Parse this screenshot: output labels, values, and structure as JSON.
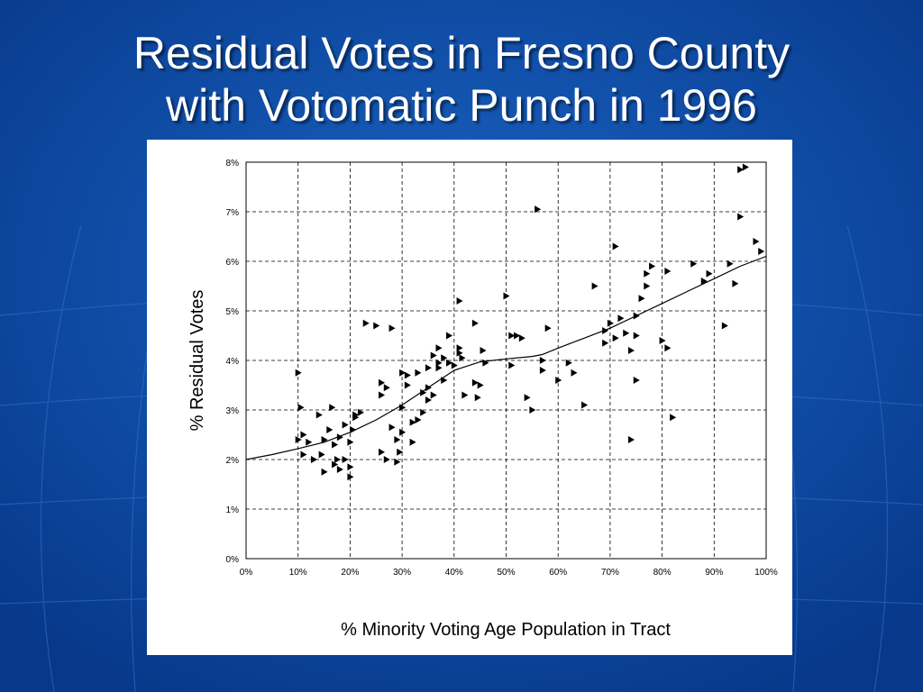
{
  "slide": {
    "title_line1": "Residual Votes in Fresno County",
    "title_line2": "with Votomatic Punch in 1996",
    "background_color": "#0a4fa8"
  },
  "chart_data": {
    "type": "scatter",
    "xlabel": "% Minority Voting Age Population in Tract",
    "ylabel": "% Residual Votes",
    "xlim": [
      0,
      100
    ],
    "ylim": [
      0,
      8
    ],
    "x_ticks": [
      "0%",
      "10%",
      "20%",
      "30%",
      "40%",
      "50%",
      "60%",
      "70%",
      "80%",
      "90%",
      "100%"
    ],
    "y_ticks": [
      "0%",
      "1%",
      "2%",
      "3%",
      "4%",
      "5%",
      "6%",
      "7%",
      "8%"
    ],
    "grid": true,
    "marker": "triangle-right",
    "series": [
      {
        "kind": "points",
        "points": [
          [
            10,
            3.75
          ],
          [
            10,
            2.4
          ],
          [
            10.5,
            3.05
          ],
          [
            11,
            2.5
          ],
          [
            11,
            2.1
          ],
          [
            12,
            2.35
          ],
          [
            13,
            2.0
          ],
          [
            14,
            2.9
          ],
          [
            14.5,
            2.1
          ],
          [
            15,
            1.75
          ],
          [
            15,
            2.4
          ],
          [
            16,
            2.6
          ],
          [
            16.5,
            3.05
          ],
          [
            17,
            1.9
          ],
          [
            17,
            2.3
          ],
          [
            17.5,
            2.0
          ],
          [
            18,
            2.45
          ],
          [
            18,
            1.8
          ],
          [
            19,
            2.7
          ],
          [
            19,
            2.0
          ],
          [
            20,
            2.35
          ],
          [
            20,
            1.65
          ],
          [
            20,
            1.85
          ],
          [
            20.5,
            2.6
          ],
          [
            21,
            2.9
          ],
          [
            21,
            2.85
          ],
          [
            22,
            2.95
          ],
          [
            23,
            4.75
          ],
          [
            25,
            4.7
          ],
          [
            26,
            3.55
          ],
          [
            26,
            3.3
          ],
          [
            26,
            2.15
          ],
          [
            27,
            2.0
          ],
          [
            27,
            3.45
          ],
          [
            28,
            2.65
          ],
          [
            28,
            4.65
          ],
          [
            29,
            2.4
          ],
          [
            29,
            1.95
          ],
          [
            29.5,
            2.15
          ],
          [
            30,
            3.75
          ],
          [
            30,
            3.05
          ],
          [
            30,
            2.55
          ],
          [
            31,
            3.5
          ],
          [
            31,
            3.7
          ],
          [
            32,
            2.75
          ],
          [
            32,
            2.35
          ],
          [
            33,
            3.75
          ],
          [
            33,
            2.8
          ],
          [
            34,
            3.35
          ],
          [
            34,
            2.95
          ],
          [
            35,
            3.85
          ],
          [
            35,
            3.2
          ],
          [
            35,
            3.45
          ],
          [
            36,
            4.1
          ],
          [
            36,
            3.3
          ],
          [
            37,
            3.85
          ],
          [
            37,
            3.95
          ],
          [
            37,
            4.25
          ],
          [
            38,
            4.05
          ],
          [
            38,
            3.6
          ],
          [
            39,
            4.5
          ],
          [
            39,
            3.95
          ],
          [
            40,
            3.9
          ],
          [
            41,
            4.15
          ],
          [
            41,
            5.2
          ],
          [
            41,
            4.25
          ],
          [
            41.5,
            4.05
          ],
          [
            42,
            3.3
          ],
          [
            44,
            4.75
          ],
          [
            44,
            3.55
          ],
          [
            44.5,
            3.25
          ],
          [
            45,
            3.5
          ],
          [
            45.5,
            4.2
          ],
          [
            46,
            3.95
          ],
          [
            50,
            5.3
          ],
          [
            51,
            4.5
          ],
          [
            51,
            3.9
          ],
          [
            52,
            4.5
          ],
          [
            53,
            4.45
          ],
          [
            54,
            3.25
          ],
          [
            55,
            3.0
          ],
          [
            56,
            7.05
          ],
          [
            57,
            4.0
          ],
          [
            57,
            3.8
          ],
          [
            58,
            4.65
          ],
          [
            60,
            3.6
          ],
          [
            62,
            3.95
          ],
          [
            63,
            3.75
          ],
          [
            65,
            3.1
          ],
          [
            67,
            5.5
          ],
          [
            69,
            4.6
          ],
          [
            69,
            4.35
          ],
          [
            70,
            4.75
          ],
          [
            71,
            6.3
          ],
          [
            71,
            4.45
          ],
          [
            72,
            4.85
          ],
          [
            73,
            4.55
          ],
          [
            74,
            2.4
          ],
          [
            74,
            4.2
          ],
          [
            75,
            3.6
          ],
          [
            75,
            4.9
          ],
          [
            75,
            4.5
          ],
          [
            76,
            5.25
          ],
          [
            77,
            5.75
          ],
          [
            77,
            5.5
          ],
          [
            78,
            5.9
          ],
          [
            80,
            4.4
          ],
          [
            81,
            4.25
          ],
          [
            81,
            5.8
          ],
          [
            82,
            2.85
          ],
          [
            86,
            5.95
          ],
          [
            88,
            5.6
          ],
          [
            89,
            5.75
          ],
          [
            92,
            4.7
          ],
          [
            93,
            5.95
          ],
          [
            94,
            5.55
          ],
          [
            95,
            6.9
          ],
          [
            95,
            7.85
          ],
          [
            96,
            7.9
          ],
          [
            98,
            6.4
          ],
          [
            99,
            6.2
          ]
        ]
      },
      {
        "kind": "trend",
        "points": [
          [
            0,
            2.0
          ],
          [
            5,
            2.1
          ],
          [
            10,
            2.22
          ],
          [
            15,
            2.35
          ],
          [
            20,
            2.55
          ],
          [
            25,
            2.8
          ],
          [
            30,
            3.1
          ],
          [
            35,
            3.45
          ],
          [
            40,
            3.8
          ],
          [
            45,
            3.97
          ],
          [
            50,
            4.03
          ],
          [
            55,
            4.08
          ],
          [
            57,
            4.12
          ],
          [
            60,
            4.25
          ],
          [
            65,
            4.45
          ],
          [
            70,
            4.65
          ],
          [
            75,
            4.9
          ],
          [
            80,
            5.15
          ],
          [
            85,
            5.4
          ],
          [
            90,
            5.65
          ],
          [
            95,
            5.9
          ],
          [
            100,
            6.1
          ]
        ]
      }
    ]
  }
}
